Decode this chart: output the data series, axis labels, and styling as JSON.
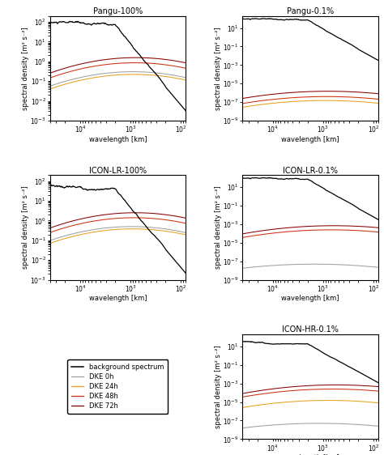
{
  "titles": [
    "Pangu-100%",
    "Pangu-0.1%",
    "ICON-LR-100%",
    "ICON-LR-0.1%",
    "ICON-HR-0.1%"
  ],
  "xlabel": "wavelength [km]",
  "ylabel": "spectral density [m² s⁻²]",
  "colors": {
    "bg": "#000000",
    "dke0": "#a0a0a0",
    "dke24": "#e8a020",
    "dke48": "#cc3010",
    "dke72": "#880000"
  },
  "legend_labels": [
    "background spectrum",
    "DKE 0h",
    "DKE 24h",
    "DKE 48h",
    "DKE 72h"
  ],
  "panel_ylims": {
    "Pangu-100%": [
      0.001,
      200.0
    ],
    "Pangu-0.1%": [
      1e-09,
      200.0
    ],
    "ICON-LR-100%": [
      0.001,
      200.0
    ],
    "ICON-LR-0.1%": [
      1e-09,
      200.0
    ],
    "ICON-HR-0.1%": [
      1e-09,
      200.0
    ]
  }
}
